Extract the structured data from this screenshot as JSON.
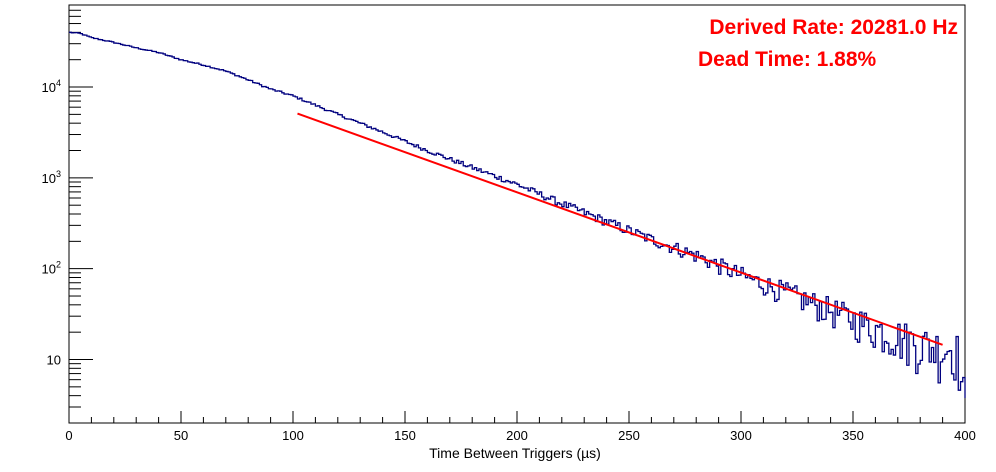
{
  "chart_data": {
    "type": "line",
    "title": "",
    "xlabel": "Time Between Triggers (µs)",
    "ylabel": "",
    "xlim": [
      0,
      400
    ],
    "ylim": [
      2,
      80000
    ],
    "y_scale": "log",
    "grid": false,
    "x_ticks": [
      0,
      50,
      100,
      150,
      200,
      250,
      300,
      350,
      400
    ],
    "y_ticks": [
      {
        "value": 10,
        "label": "10"
      },
      {
        "value": 100,
        "label": "10",
        "exp": "2"
      },
      {
        "value": 1000,
        "label": "10",
        "exp": "3"
      },
      {
        "value": 10000,
        "label": "10",
        "exp": "4"
      }
    ],
    "series": [
      {
        "color": "#00007f",
        "style": "histogram",
        "bin_width": 1,
        "x": [
          0,
          5,
          10,
          20,
          30,
          40,
          50,
          60,
          70,
          80,
          90,
          100,
          120,
          140,
          160,
          180,
          200,
          220,
          240,
          260,
          280,
          300,
          320,
          340,
          360,
          380,
          390,
          395,
          398,
          399,
          400
        ],
        "y": [
          40000,
          39000,
          35000,
          31000,
          27000,
          24000,
          20000,
          17500,
          15000,
          12000,
          9500,
          8000,
          5000,
          3200,
          2000,
          1300,
          850,
          520,
          330,
          210,
          140,
          85,
          55,
          35,
          22,
          15,
          13,
          14,
          10,
          3,
          3
        ]
      },
      {
        "color": "#ff0000",
        "style": "line",
        "x": [
          102,
          390
        ],
        "y": [
          5100,
          14.5
        ]
      }
    ],
    "annotations": [
      {
        "text": "Derived Rate: 20281.0 Hz",
        "color": "#ff0000"
      },
      {
        "text": "Dead Time: 1.88%",
        "color": "#ff0000"
      }
    ]
  }
}
